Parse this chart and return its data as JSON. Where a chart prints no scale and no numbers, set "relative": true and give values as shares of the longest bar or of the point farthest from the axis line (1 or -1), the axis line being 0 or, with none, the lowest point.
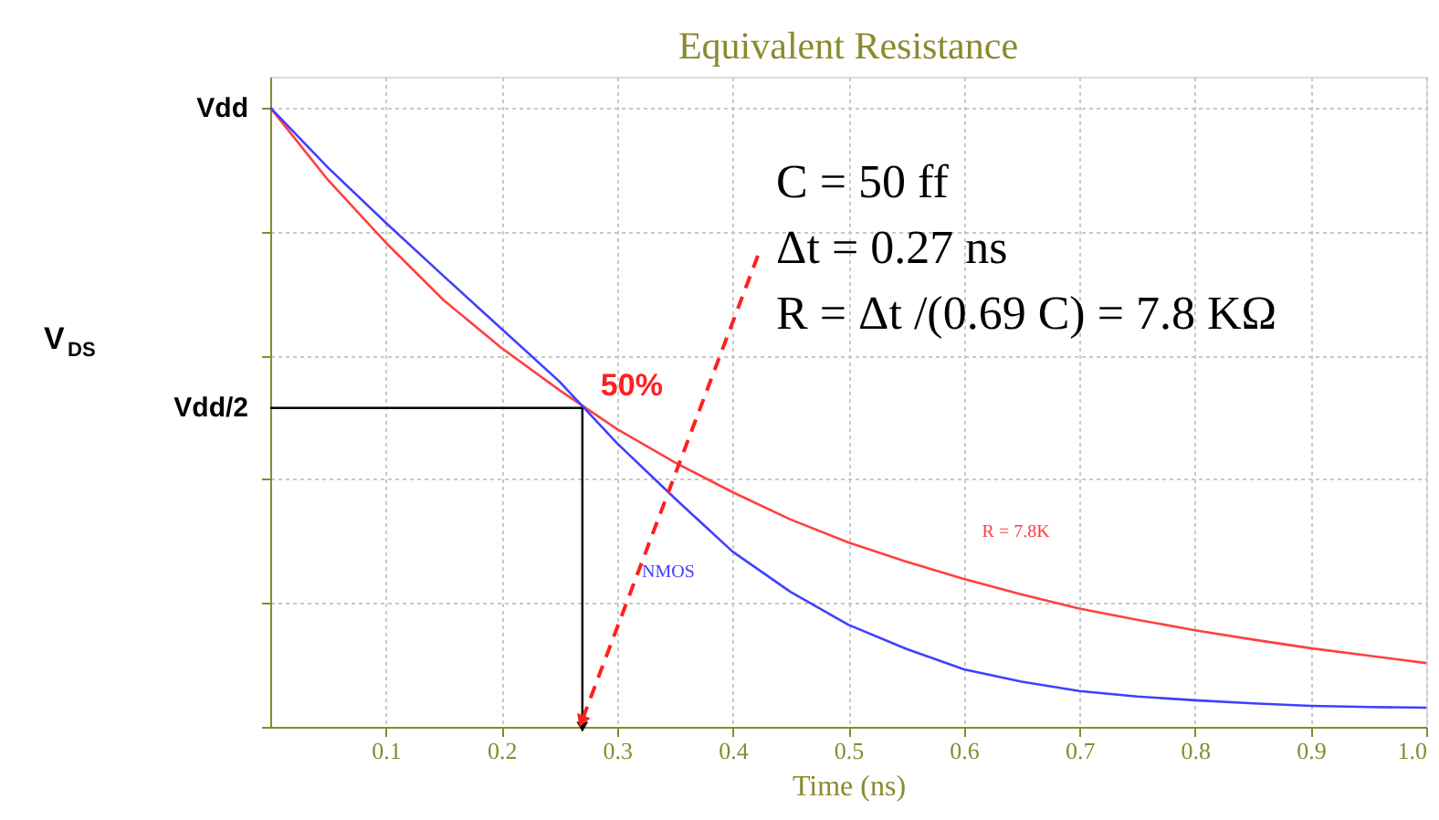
{
  "chart_data": {
    "type": "line",
    "title": "Equivalent Resistance",
    "xlabel": "Time (ns)",
    "relative": true,
    "xlim": [
      0,
      1.0
    ],
    "xticks": [
      0.1,
      0.2,
      0.3,
      0.4,
      0.5,
      0.6,
      0.7,
      0.8,
      0.9,
      {
        "value": 1.0,
        "label": "1.0"
      }
    ],
    "x": [
      0,
      0.05,
      0.1,
      0.15,
      0.2,
      0.25,
      0.3,
      0.35,
      0.4,
      0.45,
      0.5,
      0.55,
      0.6,
      0.65,
      0.7,
      0.75,
      0.8,
      0.85,
      0.9,
      0.95,
      1.0
    ],
    "series": [
      {
        "name": "R = 7.8K",
        "color": "#ff4040",
        "values": [
          1.0,
          0.883,
          0.782,
          0.689,
          0.612,
          0.544,
          0.481,
          0.427,
          0.379,
          0.335,
          0.298,
          0.267,
          0.239,
          0.214,
          0.191,
          0.173,
          0.156,
          0.141,
          0.127,
          0.115,
          0.103
        ]
      },
      {
        "name": "NMOS",
        "color": "#4040ff",
        "values": [
          1.0,
          0.903,
          0.814,
          0.728,
          0.643,
          0.558,
          0.458,
          0.369,
          0.283,
          0.218,
          0.165,
          0.126,
          0.093,
          0.073,
          0.058,
          0.049,
          0.043,
          0.038,
          0.034,
          0.032,
          0.031
        ]
      }
    ],
    "annotations": [
      "Vdd",
      "V$_{DS}$",
      "Vdd/2",
      "C = 50 ff",
      "Δt = 0.27 ns",
      "R = Δt /(0.69 C) = 7.8 KΩ",
      {
        "text": "50%",
        "x": 0.27,
        "y": 0.515
      }
    ],
    "grid": true,
    "legend": false,
    "marker": "none",
    "line_style": "solid"
  }
}
